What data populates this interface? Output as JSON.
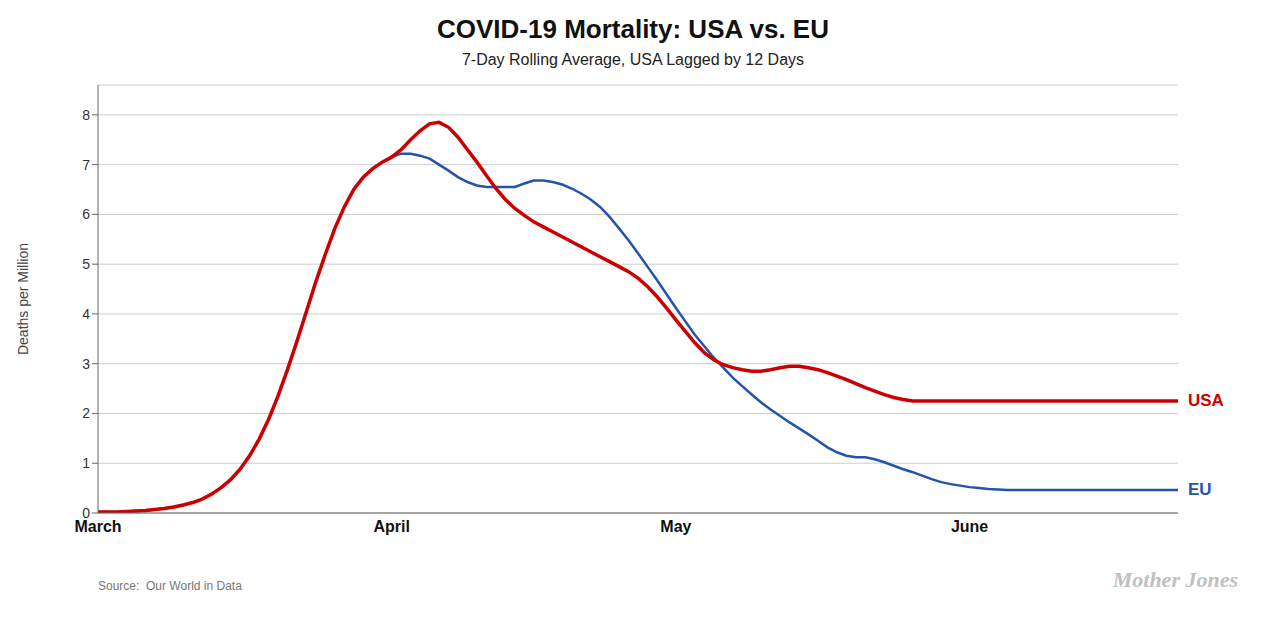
{
  "chart_data": {
    "type": "line",
    "title": "COVID-19 Mortality: USA vs. EU",
    "subtitle": "7-Day Rolling Average, USA Lagged by 12 Days",
    "ylabel": "Deaths per Million",
    "annotations": [
      "Source:  Our World in Data",
      "Mother Jones"
    ],
    "categories": [
      "March",
      null,
      null,
      null,
      null,
      null,
      null,
      null,
      null,
      null,
      null,
      null,
      null,
      null,
      null,
      null,
      null,
      null,
      null,
      null,
      null,
      null,
      null,
      null,
      null,
      null,
      null,
      null,
      null,
      null,
      null,
      "April",
      null,
      null,
      null,
      null,
      null,
      null,
      null,
      null,
      null,
      null,
      null,
      null,
      null,
      null,
      null,
      null,
      null,
      null,
      null,
      null,
      null,
      null,
      null,
      null,
      null,
      null,
      null,
      null,
      null,
      "May",
      null,
      null,
      null,
      null,
      null,
      null,
      null,
      null,
      null,
      null,
      null,
      null,
      null,
      null,
      null,
      null,
      null,
      null,
      null,
      null,
      null,
      null,
      null,
      null,
      null,
      null,
      null,
      null,
      null,
      null,
      "June",
      null,
      null,
      null,
      null,
      null,
      null,
      null,
      null,
      null,
      null,
      null,
      null,
      null,
      null,
      null,
      null,
      null,
      null,
      null,
      null,
      null,
      null
    ],
    "series": [
      {
        "name": "EU",
        "color": "#2255aa",
        "values": [
          0.02,
          0.02,
          0.02,
          0.03,
          0.04,
          0.05,
          0.07,
          0.09,
          0.12,
          0.16,
          0.21,
          0.28,
          0.38,
          0.51,
          0.67,
          0.88,
          1.15,
          1.48,
          1.88,
          2.35,
          2.88,
          3.45,
          4.05,
          4.65,
          5.2,
          5.72,
          6.15,
          6.5,
          6.75,
          6.92,
          7.05,
          7.15,
          7.22,
          7.22,
          7.18,
          7.12,
          7.0,
          6.88,
          6.75,
          6.65,
          6.58,
          6.55,
          6.55,
          6.55,
          6.55,
          6.62,
          6.68,
          6.68,
          6.65,
          6.6,
          6.52,
          6.42,
          6.3,
          6.15,
          5.95,
          5.72,
          5.48,
          5.22,
          4.95,
          4.68,
          4.4,
          4.12,
          3.85,
          3.58,
          3.35,
          3.12,
          2.92,
          2.72,
          2.55,
          2.38,
          2.22,
          2.08,
          1.95,
          1.82,
          1.7,
          1.58,
          1.45,
          1.32,
          1.22,
          1.15,
          1.12,
          1.12,
          1.08,
          1.02,
          0.95,
          0.88,
          0.82,
          0.75,
          0.68,
          0.62,
          0.58,
          0.55,
          0.52,
          0.5,
          0.48,
          0.47,
          0.46,
          0.46,
          0.46,
          0.46,
          0.46,
          0.46,
          0.46,
          0.46,
          0.46,
          0.46,
          0.46,
          0.46,
          0.46,
          0.46,
          0.46,
          0.46,
          0.46,
          0.46,
          0.46
        ]
      },
      {
        "name": "USA",
        "color": "#cc0000",
        "values": [
          0.02,
          0.02,
          0.02,
          0.03,
          0.04,
          0.05,
          0.07,
          0.09,
          0.12,
          0.16,
          0.21,
          0.28,
          0.38,
          0.51,
          0.67,
          0.88,
          1.15,
          1.48,
          1.88,
          2.35,
          2.88,
          3.45,
          4.05,
          4.65,
          5.2,
          5.72,
          6.15,
          6.5,
          6.75,
          6.92,
          7.05,
          7.15,
          7.3,
          7.5,
          7.68,
          7.82,
          7.85,
          7.75,
          7.55,
          7.3,
          7.05,
          6.78,
          6.52,
          6.3,
          6.12,
          5.98,
          5.85,
          5.75,
          5.65,
          5.55,
          5.45,
          5.35,
          5.25,
          5.15,
          5.05,
          4.95,
          4.85,
          4.72,
          4.55,
          4.35,
          4.12,
          3.88,
          3.65,
          3.42,
          3.22,
          3.08,
          2.98,
          2.92,
          2.88,
          2.85,
          2.85,
          2.88,
          2.92,
          2.95,
          2.95,
          2.92,
          2.88,
          2.82,
          2.75,
          2.68,
          2.6,
          2.52,
          2.45,
          2.38,
          2.32,
          2.28,
          2.25,
          2.25,
          2.25,
          2.25,
          2.25,
          2.25,
          2.25,
          2.25,
          2.25,
          2.25,
          2.25,
          2.25,
          2.25,
          2.25,
          2.25,
          2.25,
          2.25,
          2.25,
          2.25,
          2.25,
          2.25,
          2.25,
          2.25,
          2.25,
          2.25,
          2.25,
          2.25,
          2.25,
          2.25
        ]
      }
    ],
    "ylim": [
      0,
      8.6
    ],
    "yticks": [
      0,
      1,
      2,
      3,
      4,
      5,
      6,
      7,
      8
    ],
    "grid": true
  }
}
